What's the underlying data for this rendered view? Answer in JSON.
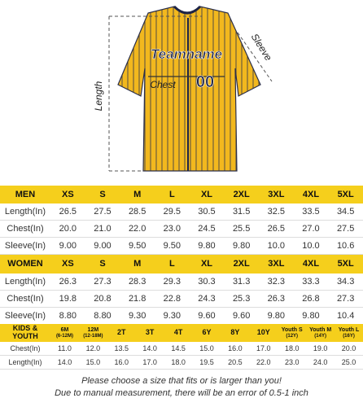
{
  "illustration": {
    "length_label": "Length",
    "sleeve_label": "Sleeve",
    "chest_label": "Chest",
    "team_name": "Teamname",
    "number": "00"
  },
  "men": {
    "title": "MEN",
    "sizes": [
      "XS",
      "S",
      "M",
      "L",
      "XL",
      "2XL",
      "3XL",
      "4XL",
      "5XL"
    ],
    "rows": [
      {
        "label": "Length(In)",
        "values": [
          "26.5",
          "27.5",
          "28.5",
          "29.5",
          "30.5",
          "31.5",
          "32.5",
          "33.5",
          "34.5"
        ]
      },
      {
        "label": "Chest(In)",
        "values": [
          "20.0",
          "21.0",
          "22.0",
          "23.0",
          "24.5",
          "25.5",
          "26.5",
          "27.0",
          "27.5"
        ]
      },
      {
        "label": "Sleeve(In)",
        "values": [
          "9.00",
          "9.00",
          "9.50",
          "9.50",
          "9.80",
          "9.80",
          "10.0",
          "10.0",
          "10.6"
        ]
      }
    ]
  },
  "women": {
    "title": "WOMEN",
    "sizes": [
      "XS",
      "S",
      "M",
      "L",
      "XL",
      "2XL",
      "3XL",
      "4XL",
      "5XL"
    ],
    "rows": [
      {
        "label": "Length(In)",
        "values": [
          "26.3",
          "27.3",
          "28.3",
          "29.3",
          "30.3",
          "31.3",
          "32.3",
          "33.3",
          "34.3"
        ]
      },
      {
        "label": "Chest(In)",
        "values": [
          "19.8",
          "20.8",
          "21.8",
          "22.8",
          "24.3",
          "25.3",
          "26.3",
          "26.8",
          "27.3"
        ]
      },
      {
        "label": "Sleeve(In)",
        "values": [
          "8.80",
          "8.80",
          "9.30",
          "9.30",
          "9.60",
          "9.60",
          "9.80",
          "9.80",
          "10.4"
        ]
      }
    ]
  },
  "kids": {
    "title": "KIDS & YOUTH",
    "sizes": [
      {
        "size": "6M",
        "age": "(6-12M)"
      },
      {
        "size": "12M",
        "age": "(12-18M)"
      },
      {
        "size": "2T"
      },
      {
        "size": "3T"
      },
      {
        "size": "4T"
      },
      {
        "size": "6Y"
      },
      {
        "size": "8Y"
      },
      {
        "size": "10Y"
      },
      {
        "size": "Youth S",
        "age": "(12Y)"
      },
      {
        "size": "Youth M",
        "age": "(14Y)"
      },
      {
        "size": "Youth L",
        "age": "(16Y)"
      }
    ],
    "rows": [
      {
        "label": "Chest(In)",
        "values": [
          "11.0",
          "12.0",
          "13.5",
          "14.0",
          "14.5",
          "15.0",
          "16.0",
          "17.0",
          "18.0",
          "19.0",
          "20.0"
        ]
      },
      {
        "label": "Length(In)",
        "values": [
          "14.0",
          "15.0",
          "16.0",
          "17.0",
          "18.0",
          "19.5",
          "20.5",
          "22.0",
          "23.0",
          "24.0",
          "25.0"
        ]
      }
    ]
  },
  "footer": {
    "line1": "Please choose a size that fits or is larger than you!",
    "line2": "Due to manual measurement, there will be an error of 0.5-1 inch"
  }
}
